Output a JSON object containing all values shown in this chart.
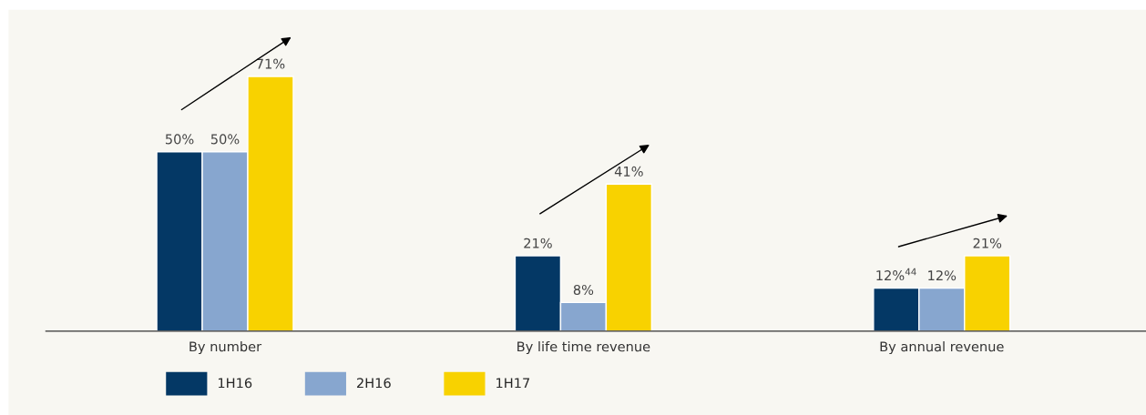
{
  "chart_data": {
    "type": "bar",
    "categories": [
      "By number",
      "By life time revenue",
      "By annual revenue"
    ],
    "series": [
      {
        "name": "1H16",
        "color": "#043865",
        "values": [
          50,
          21,
          12
        ],
        "value_labels": [
          "50%",
          "21%",
          "12%$^{44}$"
        ]
      },
      {
        "name": "2H16",
        "color": "#87a6cf",
        "values": [
          50,
          8,
          12
        ],
        "value_labels": [
          "50%",
          "8%",
          "12%"
        ]
      },
      {
        "name": "1H17",
        "color": "#f8d200",
        "values": [
          71,
          41,
          21
        ],
        "value_labels": [
          "71%",
          "41%",
          "21%"
        ]
      }
    ],
    "legend": "bottom left",
    "grid": false,
    "tick_labels": "x"
  }
}
